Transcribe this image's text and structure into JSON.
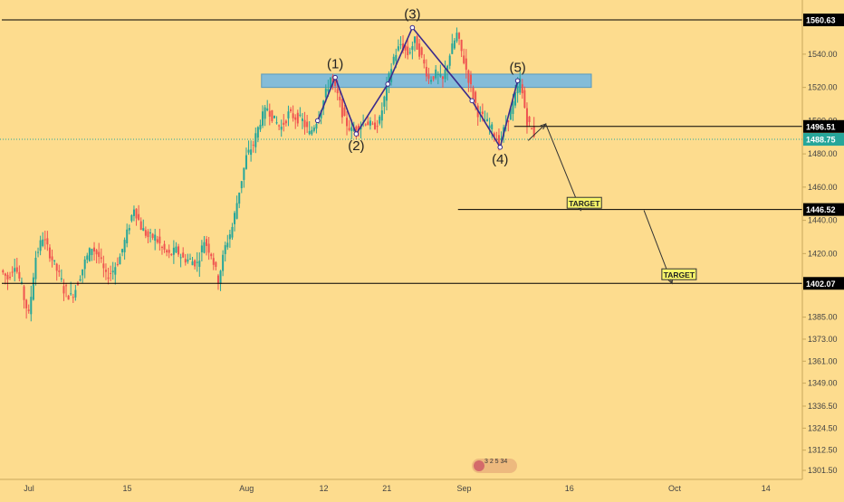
{
  "colors": {
    "background": "#fddc8e",
    "axis_text": "#444444",
    "up_candle": "#26a69a",
    "down_candle": "#ef5350",
    "level_line": "#000000",
    "current_price_line": "#26a69a",
    "resistance_zone": "#6fb7e6",
    "wave_line": "#3b2b8c",
    "target_box": "#f7f46a"
  },
  "chart_data": {
    "type": "candlestick",
    "title": "",
    "ylim": [
      1295,
      1570
    ],
    "y_ticks": [
      "1540.00",
      "1520.00",
      "1500.00",
      "1480.00",
      "1460.00",
      "1440.00",
      "1420.00",
      "1400.00",
      "1385.00",
      "1373.00",
      "1361.00",
      "1349.00",
      "1336.50",
      "1324.50",
      "1312.50",
      "1301.50"
    ],
    "x_ticks": [
      {
        "label": "Jul",
        "day": 0
      },
      {
        "label": "15",
        "day": 14
      },
      {
        "label": "Aug",
        "day": 31
      },
      {
        "label": "12",
        "day": 42
      },
      {
        "label": "21",
        "day": 51
      },
      {
        "label": "Sep",
        "day": 62
      },
      {
        "label": "16",
        "day": 77
      },
      {
        "label": "Oct",
        "day": 92
      },
      {
        "label": "14",
        "day": 105
      }
    ],
    "price_levels": [
      {
        "label": "1560.63",
        "value": 1560.63,
        "from_day": 0
      },
      {
        "label": "1496.51",
        "value": 1496.51,
        "from_day": 73
      },
      {
        "label": "1446.52",
        "value": 1446.52,
        "from_day": 65
      },
      {
        "label": "1402.07",
        "value": 1402.07,
        "from_day": 0
      }
    ],
    "current_price": {
      "label": "1488.75",
      "value": 1488.75
    },
    "resistance_zone": {
      "from_day": 37,
      "to_day": 84,
      "low": 1520,
      "high": 1528
    },
    "wave_points": [
      {
        "label": "(1)",
        "day": 47.5,
        "price": 1526
      },
      {
        "label": "(2)",
        "day": 50.5,
        "price": 1492
      },
      {
        "label": "(3)",
        "day": 58.5,
        "price": 1556
      },
      {
        "label": "(4)",
        "day": 71,
        "price": 1484
      },
      {
        "label": "(5)",
        "day": 73.5,
        "price": 1524
      }
    ],
    "wave_path": [
      [
        45,
        1500
      ],
      [
        47.5,
        1526
      ],
      [
        50.5,
        1492
      ],
      [
        55,
        1522
      ],
      [
        58.5,
        1556
      ],
      [
        67,
        1512
      ],
      [
        71,
        1484
      ],
      [
        73.5,
        1524
      ]
    ],
    "projection": [
      [
        75,
        1488
      ],
      [
        77.5,
        1498
      ],
      [
        82.5,
        1446
      ]
    ],
    "second_projection": [
      [
        91.5,
        1446
      ],
      [
        95.5,
        1402
      ]
    ],
    "targets": [
      {
        "label": "TARGET",
        "day": 83,
        "price": 1450
      },
      {
        "label": "TARGET",
        "day": 96.5,
        "price": 1407
      }
    ],
    "candle_path": [
      [
        0,
        1410
      ],
      [
        1,
        1405
      ],
      [
        2,
        1414
      ],
      [
        3,
        1400
      ],
      [
        4,
        1386
      ],
      [
        5,
        1418
      ],
      [
        6,
        1430
      ],
      [
        7,
        1420
      ],
      [
        8,
        1410
      ],
      [
        9,
        1400
      ],
      [
        10,
        1396
      ],
      [
        11,
        1403
      ],
      [
        12,
        1415
      ],
      [
        13,
        1424
      ],
      [
        14,
        1418
      ],
      [
        15,
        1406
      ],
      [
        16,
        1410
      ],
      [
        17,
        1418
      ],
      [
        18,
        1432
      ],
      [
        19,
        1448
      ],
      [
        20,
        1436
      ],
      [
        21,
        1430
      ],
      [
        22,
        1430
      ],
      [
        23,
        1423
      ],
      [
        24,
        1419
      ],
      [
        25,
        1422
      ],
      [
        26,
        1417
      ],
      [
        27,
        1416
      ],
      [
        28,
        1414
      ],
      [
        29,
        1428
      ],
      [
        30,
        1420
      ],
      [
        31,
        1404
      ],
      [
        32,
        1424
      ],
      [
        33,
        1436
      ],
      [
        34,
        1458
      ],
      [
        35,
        1478
      ],
      [
        36,
        1486
      ],
      [
        37,
        1500
      ],
      [
        38,
        1508
      ],
      [
        39,
        1500
      ],
      [
        40,
        1496
      ],
      [
        41,
        1504
      ],
      [
        42,
        1502
      ],
      [
        43,
        1500
      ],
      [
        44,
        1492
      ],
      [
        45,
        1500
      ],
      [
        46,
        1512
      ],
      [
        47,
        1526
      ],
      [
        48,
        1515
      ],
      [
        49,
        1500
      ],
      [
        50,
        1494
      ],
      [
        51,
        1497
      ],
      [
        52,
        1500
      ],
      [
        53,
        1496
      ],
      [
        54,
        1500
      ],
      [
        55,
        1520
      ],
      [
        56,
        1538
      ],
      [
        57,
        1546
      ],
      [
        58,
        1540
      ],
      [
        59,
        1548
      ],
      [
        60,
        1538
      ],
      [
        61,
        1525
      ],
      [
        62,
        1528
      ],
      [
        63,
        1524
      ],
      [
        64,
        1540
      ],
      [
        65,
        1552
      ],
      [
        66,
        1536
      ],
      [
        67,
        1520
      ],
      [
        68,
        1505
      ],
      [
        69,
        1500
      ],
      [
        70,
        1495
      ],
      [
        71,
        1486
      ],
      [
        72,
        1498
      ],
      [
        73,
        1510
      ],
      [
        74,
        1524
      ],
      [
        75,
        1500
      ],
      [
        76,
        1492
      ]
    ]
  }
}
